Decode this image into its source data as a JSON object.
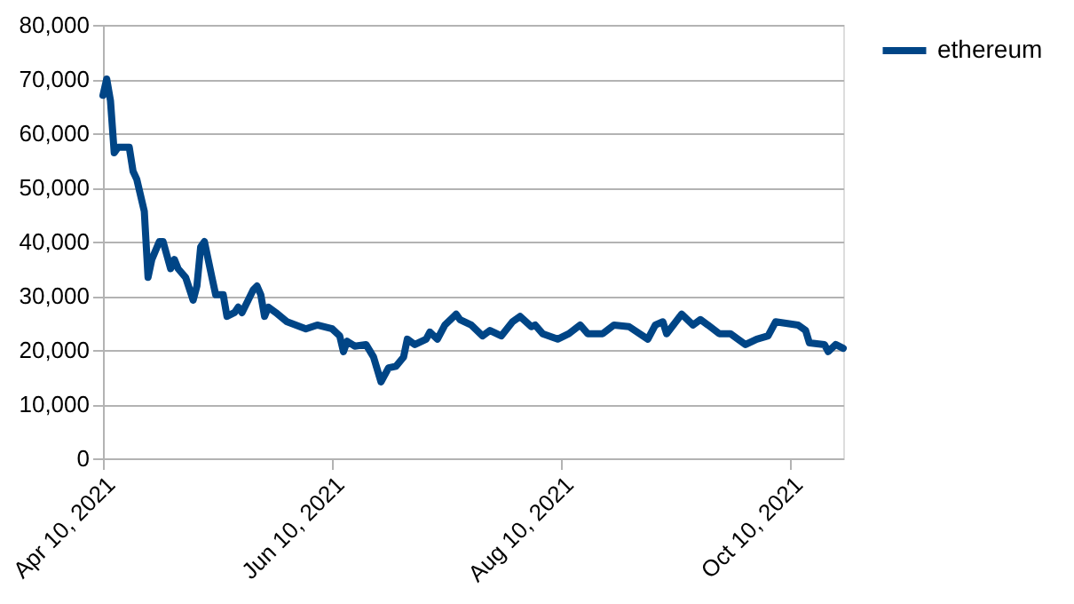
{
  "chart_data": {
    "type": "line",
    "x": [
      "2021-04-10",
      "2021-04-11",
      "2021-04-12",
      "2021-04-13",
      "2021-04-14",
      "2021-04-17",
      "2021-04-18",
      "2021-04-19",
      "2021-04-21",
      "2021-04-22",
      "2021-04-23",
      "2021-04-25",
      "2021-04-26",
      "2021-04-28",
      "2021-04-29",
      "2021-04-30",
      "2021-05-02",
      "2021-05-04",
      "2021-05-05",
      "2021-05-06",
      "2021-05-07",
      "2021-05-09",
      "2021-05-10",
      "2021-05-12",
      "2021-05-13",
      "2021-05-15",
      "2021-05-16",
      "2021-05-17",
      "2021-05-20",
      "2021-05-21",
      "2021-05-22",
      "2021-05-23",
      "2021-05-24",
      "2021-05-26",
      "2021-05-29",
      "2021-06-03",
      "2021-06-06",
      "2021-06-10",
      "2021-06-12",
      "2021-06-13",
      "2021-06-14",
      "2021-06-16",
      "2021-06-19",
      "2021-06-21",
      "2021-06-23",
      "2021-06-25",
      "2021-06-27",
      "2021-06-29",
      "2021-06-30",
      "2021-07-02",
      "2021-07-05",
      "2021-07-06",
      "2021-07-08",
      "2021-07-10",
      "2021-07-13",
      "2021-07-14",
      "2021-07-17",
      "2021-07-20",
      "2021-07-22",
      "2021-07-25",
      "2021-07-28",
      "2021-07-30",
      "2021-08-02",
      "2021-08-03",
      "2021-08-05",
      "2021-08-09",
      "2021-08-12",
      "2021-08-15",
      "2021-08-17",
      "2021-08-21",
      "2021-08-24",
      "2021-08-28",
      "2021-09-02",
      "2021-09-04",
      "2021-09-06",
      "2021-09-07",
      "2021-09-11",
      "2021-09-14",
      "2021-09-16",
      "2021-09-18",
      "2021-09-21",
      "2021-09-24",
      "2021-09-28",
      "2021-10-01",
      "2021-10-04",
      "2021-10-06",
      "2021-10-12",
      "2021-10-14",
      "2021-10-15",
      "2021-10-19",
      "2021-10-20",
      "2021-10-22",
      "2021-10-24"
    ],
    "series": [
      {
        "name": "ethereum",
        "color": "#004586",
        "values": [
          67000,
          70000,
          66000,
          56400,
          57400,
          57400,
          53000,
          51500,
          45600,
          33400,
          36700,
          40000,
          40000,
          35000,
          36700,
          35000,
          33400,
          29200,
          31800,
          39000,
          40000,
          33400,
          30200,
          30200,
          26200,
          26900,
          27900,
          26900,
          31100,
          31800,
          30200,
          26200,
          27900,
          26900,
          25200,
          23900,
          24600,
          23900,
          22600,
          19700,
          21600,
          20700,
          21000,
          18700,
          14100,
          16700,
          17000,
          18700,
          22000,
          21000,
          22000,
          23300,
          22000,
          24600,
          26600,
          25600,
          24600,
          22600,
          23600,
          22600,
          25200,
          26200,
          24300,
          24600,
          23000,
          22000,
          23000,
          24600,
          23000,
          23000,
          24600,
          24300,
          22000,
          24600,
          25200,
          23000,
          26600,
          24600,
          25600,
          24600,
          23000,
          23000,
          21000,
          22000,
          22600,
          25200,
          24600,
          23600,
          21300,
          21000,
          19700,
          21000,
          20300
        ]
      }
    ],
    "xlim": [
      "2021-04-10",
      "2021-10-24"
    ],
    "xticks": [
      {
        "value": "2021-04-10",
        "label": "Apr 10, 2021"
      },
      {
        "value": "2021-06-10",
        "label": "Jun 10, 2021"
      },
      {
        "value": "2021-08-10",
        "label": "Aug 10, 2021"
      },
      {
        "value": "2021-10-10",
        "label": "Oct 10, 2021"
      }
    ],
    "ylim": [
      0,
      80000
    ],
    "yticks": [
      0,
      {
        "value": 10000,
        "label": "10,000"
      },
      {
        "value": 20000,
        "label": "20,000"
      },
      {
        "value": 30000,
        "label": "30,000"
      },
      {
        "value": 40000,
        "label": "40,000"
      },
      {
        "value": 50000,
        "label": "50,000"
      },
      {
        "value": 60000,
        "label": "60,000"
      },
      {
        "value": 70000,
        "label": "70,000"
      },
      {
        "value": 80000,
        "label": "80,000"
      }
    ],
    "grid": "y",
    "legend": "right",
    "marker": "none",
    "line_style": "solid"
  }
}
